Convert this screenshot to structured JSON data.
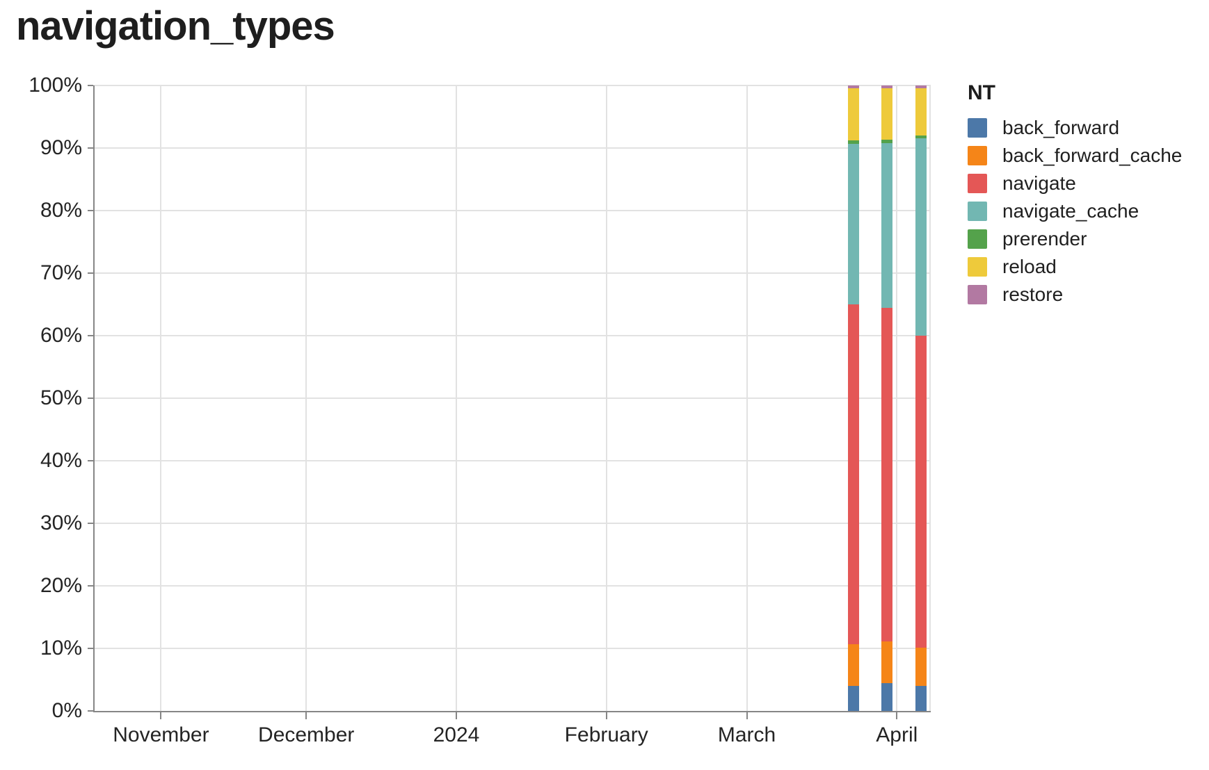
{
  "title": "navigation_types",
  "chart_data": {
    "type": "bar",
    "variant": "stacked-normalized-100",
    "title": "navigation_types",
    "grid": true,
    "legend": {
      "title": "NT",
      "position": "right"
    },
    "x_axis": {
      "scale": "time",
      "domain": [
        "2023-10-18",
        "2024-04-08"
      ],
      "ticks": [
        {
          "date": "2023-11-01",
          "label": "November"
        },
        {
          "date": "2023-12-01",
          "label": "December"
        },
        {
          "date": "2024-01-01",
          "label": "2024"
        },
        {
          "date": "2024-02-01",
          "label": "February"
        },
        {
          "date": "2024-03-01",
          "label": "March"
        },
        {
          "date": "2024-04-01",
          "label": "April"
        }
      ]
    },
    "y_axis": {
      "min": 0,
      "max": 100,
      "tick_step": 10,
      "unit": "%",
      "tick_labels": [
        "0%",
        "10%",
        "20%",
        "30%",
        "40%",
        "50%",
        "60%",
        "70%",
        "80%",
        "90%",
        "100%"
      ]
    },
    "x": [
      "2024-03-23",
      "2024-03-30",
      "2024-04-06"
    ],
    "series": [
      {
        "name": "back_forward",
        "color": "#4c78a8",
        "values": [
          4.0,
          4.4,
          4.0
        ]
      },
      {
        "name": "back_forward_cache",
        "color": "#f58518",
        "values": [
          6.7,
          6.7,
          6.1
        ]
      },
      {
        "name": "navigate",
        "color": "#e45756",
        "values": [
          54.3,
          53.3,
          49.9
        ]
      },
      {
        "name": "navigate_cache",
        "color": "#72b7b2",
        "values": [
          25.7,
          26.4,
          31.6
        ]
      },
      {
        "name": "prerender",
        "color": "#54a24b",
        "values": [
          0.5,
          0.5,
          0.4
        ]
      },
      {
        "name": "reload",
        "color": "#eeca3b",
        "values": [
          8.4,
          8.3,
          7.6
        ]
      },
      {
        "name": "restore",
        "color": "#b279a2",
        "values": [
          0.4,
          0.4,
          0.4
        ]
      }
    ]
  },
  "style_colors": {
    "background": "#ffffff",
    "title": "#1e1e1e",
    "axis_label": "#242424",
    "axis_line": "#868686",
    "gridline": "#e2e2e2"
  }
}
